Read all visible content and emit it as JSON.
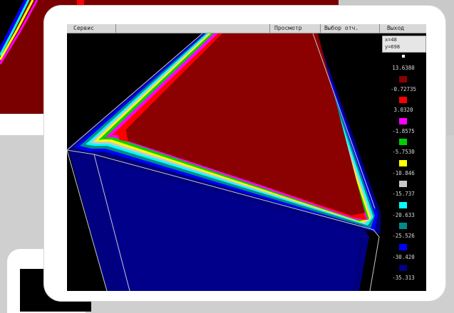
{
  "menu": {
    "items": [
      {
        "label": "Сервис"
      },
      {
        "label": "Просмотр"
      },
      {
        "label": "Выбор отч."
      },
      {
        "label": "Выход"
      }
    ]
  },
  "coordinates": {
    "x_readout": "x=48",
    "y_readout": "y=698"
  },
  "legend": {
    "values": [
      "13.6380",
      "-0.72735",
      "3.0320",
      "-1.8575",
      "-5.7530",
      "-10.846",
      "-15.737",
      "-20.633",
      "-25.526",
      "-30.420",
      "-35.313"
    ],
    "swatches": [
      {
        "color": "#ffffff"
      },
      {
        "color": "#8b0000"
      },
      {
        "color": "#ff0000"
      },
      {
        "color": "#ff00ff"
      },
      {
        "color": "#00d000"
      },
      {
        "color": "#ffff00"
      },
      {
        "color": "#c8c8c8"
      },
      {
        "color": "#00ffff"
      },
      {
        "color": "#008b8b"
      },
      {
        "color": "#0000ff"
      },
      {
        "color": "#000080"
      }
    ]
  },
  "colors": {
    "dark_red": "#8b0000",
    "navy": "#000080"
  }
}
